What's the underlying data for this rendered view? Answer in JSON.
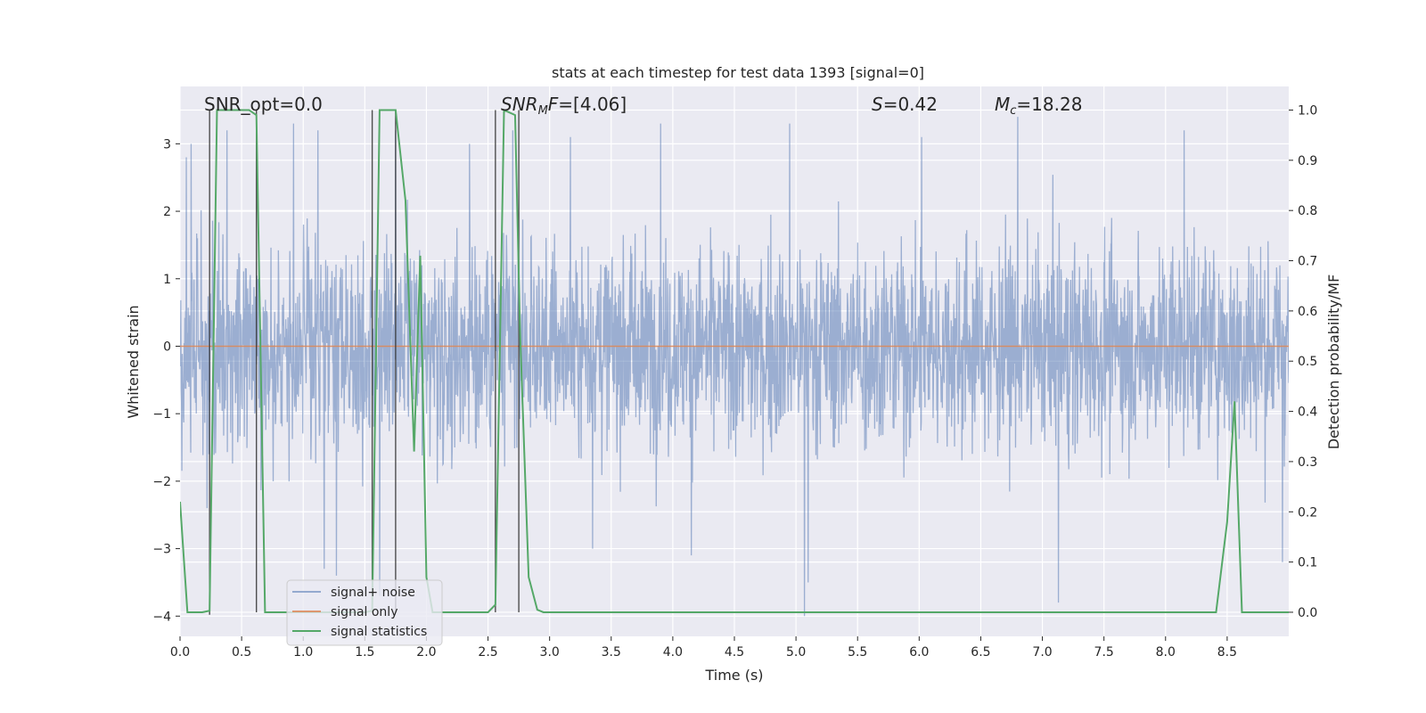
{
  "chart_data": {
    "type": "line",
    "title": "stats at each timestep for test data 1393 [signal=0]",
    "xlabel": "Time (s)",
    "ylabel": "Whitened strain",
    "ylabel_right": "Detection probability/MF",
    "xlim": [
      0.0,
      9.0
    ],
    "ylim": [
      -4.3,
      3.85
    ],
    "ylim_right": [
      -0.048,
      1.047
    ],
    "x_ticks": [
      0.0,
      0.5,
      1.0,
      1.5,
      2.0,
      2.5,
      3.0,
      3.5,
      4.0,
      4.5,
      5.0,
      5.5,
      6.0,
      6.5,
      7.0,
      7.5,
      8.0,
      8.5
    ],
    "x_tick_labels": [
      "0.0",
      "0.5",
      "1.0",
      "1.5",
      "2.0",
      "2.5",
      "3.0",
      "3.5",
      "4.0",
      "4.5",
      "5.0",
      "5.5",
      "6.0",
      "6.5",
      "7.0",
      "7.5",
      "8.0",
      "8.5"
    ],
    "y_ticks": [
      -4,
      -3,
      -2,
      -1,
      0,
      1,
      2,
      3
    ],
    "y_tick_labels": [
      "−4",
      "−3",
      "−2",
      "−1",
      "0",
      "1",
      "2",
      "3"
    ],
    "y_right_ticks": [
      0.0,
      0.1,
      0.2,
      0.3,
      0.4,
      0.5,
      0.6,
      0.7,
      0.8,
      0.9,
      1.0
    ],
    "y_right_tick_labels": [
      "0.0",
      "0.1",
      "0.2",
      "0.3",
      "0.4",
      "0.5",
      "0.6",
      "0.7",
      "0.8",
      "0.9",
      "1.0"
    ],
    "annotations": {
      "snr_opt": "SNR_opt=0.0",
      "snr_mf_main": "SNR",
      "snr_mf_sub": "M",
      "snr_mf_tail": "F=[4.06]",
      "s_italic": "S",
      "s_value": "=0.42",
      "mc_main": "M",
      "mc_sub": "c",
      "mc_value": "=18.28"
    },
    "series": [
      {
        "name": "signal+ noise",
        "color": "#4c72b0",
        "alpha": 0.5,
        "description": "whitened noise, amplitude roughly within -2.5..3, with occasional excursions to about -4 and +3.4",
        "peaks": [
          {
            "x": 0.05,
            "y": 2.8
          },
          {
            "x": 0.09,
            "y": 3.0
          },
          {
            "x": 0.22,
            "y": -2.4
          },
          {
            "x": 0.38,
            "y": 3.2
          },
          {
            "x": 0.92,
            "y": 3.3
          },
          {
            "x": 1.12,
            "y": 3.2
          },
          {
            "x": 1.17,
            "y": -3.3
          },
          {
            "x": 1.27,
            "y": -3.4
          },
          {
            "x": 1.62,
            "y": -3.7
          },
          {
            "x": 1.75,
            "y": 3.2
          },
          {
            "x": 2.35,
            "y": 3.0
          },
          {
            "x": 2.7,
            "y": 3.2
          },
          {
            "x": 3.17,
            "y": 3.1
          },
          {
            "x": 3.35,
            "y": -3.0
          },
          {
            "x": 3.9,
            "y": 3.3
          },
          {
            "x": 4.15,
            "y": -3.1
          },
          {
            "x": 4.95,
            "y": 3.3
          },
          {
            "x": 5.07,
            "y": -4.0
          },
          {
            "x": 5.1,
            "y": -3.5
          },
          {
            "x": 6.02,
            "y": 3.1
          },
          {
            "x": 6.8,
            "y": 3.4
          },
          {
            "x": 7.13,
            "y": -3.8
          },
          {
            "x": 8.15,
            "y": 3.2
          },
          {
            "x": 8.95,
            "y": -3.2
          }
        ]
      },
      {
        "name": "signal only",
        "color": "#dd8452",
        "x": [
          0.0,
          9.0
        ],
        "y": [
          0.0,
          0.0
        ]
      },
      {
        "name": "signal statistics",
        "color": "#55a868",
        "axis": "right",
        "x": [
          0.0,
          0.06,
          0.18,
          0.24,
          0.3,
          0.56,
          0.62,
          0.69,
          1.5,
          1.56,
          1.62,
          1.75,
          1.83,
          1.9,
          1.95,
          2.0,
          2.05,
          2.09,
          2.5,
          2.56,
          2.63,
          2.72,
          2.76,
          2.83,
          2.9,
          2.95,
          3.0,
          8.41,
          8.5,
          8.56,
          8.62,
          9.0
        ],
        "y": [
          0.22,
          0.0,
          0.0,
          0.003,
          1.0,
          1.0,
          0.99,
          0.0,
          0.0,
          0.003,
          1.0,
          1.0,
          0.82,
          0.32,
          0.71,
          0.07,
          0.0,
          0.0,
          0.0,
          0.015,
          1.0,
          0.99,
          0.56,
          0.07,
          0.005,
          0.0,
          0.0,
          0.0,
          0.18,
          0.42,
          0.0,
          0.0
        ]
      },
      {
        "name": "detection markers",
        "color": "#333333",
        "vertical_lines": [
          {
            "x": 0.24,
            "y0": -0.005,
            "y1": 1.0
          },
          {
            "x": 0.62,
            "y0": 0.0,
            "y1": 1.0
          },
          {
            "x": 1.56,
            "y0": 0.0,
            "y1": 1.0
          },
          {
            "x": 1.75,
            "y0": 0.0,
            "y1": 1.0
          },
          {
            "x": 2.56,
            "y0": 0.0,
            "y1": 1.0
          },
          {
            "x": 2.75,
            "y0": 0.0,
            "y1": 1.0
          }
        ]
      }
    ],
    "legend": {
      "placement": "lower-left",
      "entries": [
        "signal+ noise",
        "signal only",
        "signal statistics"
      ]
    }
  }
}
